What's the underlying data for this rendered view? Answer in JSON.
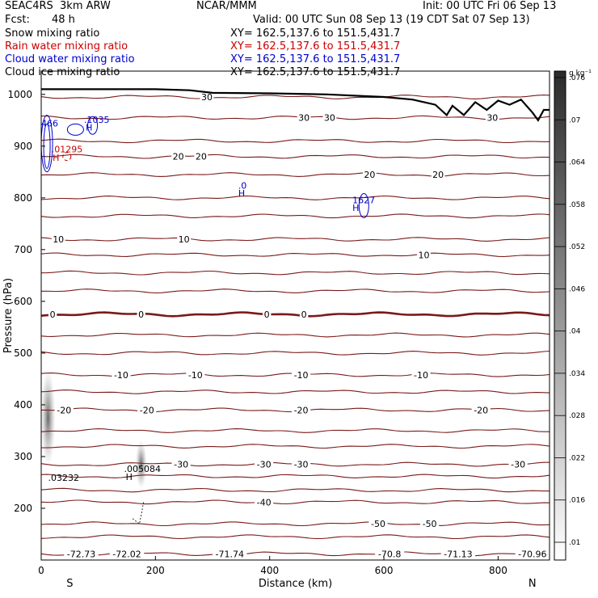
{
  "header": {
    "model": "SEAC4RS  3km ARW",
    "org": "NCAR/MMM",
    "init": "Init: 00 UTC Fri 06 Sep 13",
    "fcst_label": "Fcst:",
    "fcst_value": "48 h",
    "valid": "Valid: 00 UTC Sun 08 Sep 13 (19 CDT Sat 07 Sep 13)"
  },
  "legend": [
    {
      "label": "Snow mixing ratio",
      "xy": "XY= 162.5,137.6 to 151.5,431.7",
      "color": "#000000"
    },
    {
      "label": "Rain water mixing ratio",
      "xy": "XY= 162.5,137.6 to 151.5,431.7",
      "color": "#cc0000"
    },
    {
      "label": "Cloud water mixing ratio",
      "xy": "XY= 162.5,137.6 to 151.5,431.7",
      "color": "#0000cc"
    },
    {
      "label": "Cloud ice mixing ratio",
      "xy": "XY= 162.5,137.6 to 151.5,431.7",
      "color": "#000000"
    }
  ],
  "chart_data": {
    "type": "cross-section",
    "xlabel": "Distance (km)",
    "ylabel": "Pressure (hPa)",
    "xlim": [
      0,
      890
    ],
    "ylim": [
      1045,
      100
    ],
    "x_ticks": [
      0,
      200,
      400,
      600,
      800
    ],
    "y_ticks": [
      200,
      300,
      400,
      500,
      600,
      700,
      800,
      900,
      1000
    ],
    "end_labels": {
      "left": "S",
      "right": "N"
    },
    "colorbar": {
      "unit": "g kg⁻¹",
      "ticks": [
        ".01",
        ".016",
        ".022",
        ".028",
        ".034",
        ".04",
        ".046",
        ".052",
        ".058",
        ".064",
        ".07",
        ".076"
      ]
    },
    "temperature_isotherms": [
      {
        "p": 112,
        "labels": [
          {
            "x": 70,
            "t": "-72.73"
          },
          {
            "x": 150,
            "t": "-72.02"
          },
          {
            "x": 330,
            "t": "-71.74"
          },
          {
            "x": 610,
            "t": "-70.8"
          },
          {
            "x": 730,
            "t": "-71.13"
          },
          {
            "x": 860,
            "t": "-70.96"
          }
        ]
      },
      {
        "p": 145,
        "labels": []
      },
      {
        "p": 170,
        "labels": [
          {
            "x": 590,
            "t": "-50"
          },
          {
            "x": 680,
            "t": "-50"
          }
        ]
      },
      {
        "p": 212,
        "labels": [
          {
            "x": 390,
            "t": "-40"
          }
        ]
      },
      {
        "p": 235,
        "labels": []
      },
      {
        "p": 262,
        "labels": []
      },
      {
        "p": 285,
        "labels": [
          {
            "x": 245,
            "t": "-30"
          },
          {
            "x": 390,
            "t": "-30"
          },
          {
            "x": 455,
            "t": "-30"
          },
          {
            "x": 835,
            "t": "-30"
          }
        ]
      },
      {
        "p": 320,
        "labels": []
      },
      {
        "p": 350,
        "labels": []
      },
      {
        "p": 390,
        "labels": [
          {
            "x": 40,
            "t": "-20"
          },
          {
            "x": 185,
            "t": "-20"
          },
          {
            "x": 455,
            "t": "-20"
          },
          {
            "x": 770,
            "t": "-20"
          }
        ]
      },
      {
        "p": 425,
        "labels": []
      },
      {
        "p": 458,
        "labels": [
          {
            "x": 140,
            "t": "-10"
          },
          {
            "x": 270,
            "t": "-10"
          },
          {
            "x": 455,
            "t": "-10"
          },
          {
            "x": 665,
            "t": "-10"
          }
        ]
      },
      {
        "p": 500,
        "labels": []
      },
      {
        "p": 535,
        "labels": []
      },
      {
        "p": 575,
        "labels": [
          {
            "x": 20,
            "t": "0"
          },
          {
            "x": 175,
            "t": "0"
          },
          {
            "x": 395,
            "t": "0"
          },
          {
            "x": 460,
            "t": "0"
          }
        ],
        "bold": true
      },
      {
        "p": 620,
        "labels": []
      },
      {
        "p": 655,
        "labels": []
      },
      {
        "p": 690,
        "labels": [
          {
            "x": 670,
            "t": "10"
          }
        ]
      },
      {
        "p": 720,
        "labels": [
          {
            "x": 30,
            "t": "10"
          },
          {
            "x": 250,
            "t": "10"
          }
        ]
      },
      {
        "p": 765,
        "labels": []
      },
      {
        "p": 800,
        "labels": []
      },
      {
        "p": 845,
        "labels": [
          {
            "x": 695,
            "t": "20"
          },
          {
            "x": 575,
            "t": "20"
          }
        ]
      },
      {
        "p": 880,
        "labels": [
          {
            "x": 240,
            "t": "20"
          },
          {
            "x": 280,
            "t": "20"
          }
        ]
      },
      {
        "p": 910,
        "labels": []
      },
      {
        "p": 955,
        "labels": [
          {
            "x": 505,
            "t": "30"
          },
          {
            "x": 790,
            "t": "30"
          },
          {
            "x": 460,
            "t": "30"
          }
        ]
      },
      {
        "p": 995,
        "labels": [
          {
            "x": 290,
            "t": "30"
          }
        ]
      }
    ],
    "terrain": {
      "x": [
        0,
        100,
        200,
        260,
        300,
        400,
        500,
        600,
        650,
        690,
        700,
        710,
        720,
        740,
        760,
        780,
        800,
        820,
        840,
        860,
        870,
        880,
        890
      ],
      "p": [
        1010,
        1010,
        1010,
        1008,
        1003,
        1002,
        1000,
        995,
        990,
        980,
        970,
        960,
        978,
        960,
        985,
        970,
        988,
        980,
        990,
        965,
        950,
        970,
        970
      ]
    },
    "annotations": [
      {
        "x": 12,
        "p": 253,
        "t": ".03232",
        "color": "#000000"
      },
      {
        "x": 148,
        "p": 255,
        "t": "H",
        "color": "#000000"
      },
      {
        "x": 145,
        "p": 270,
        "t": ".005084",
        "color": "#000000"
      },
      {
        "x": 20,
        "p": 872,
        "t": "H",
        "color": "#cc0000"
      },
      {
        "x": 18,
        "p": 888,
        "t": ".01295",
        "color": "#cc0000"
      },
      {
        "x": 0,
        "p": 938,
        "t": "466",
        "color": "#0000cc"
      },
      {
        "x": 78,
        "p": 930,
        "t": "H",
        "color": "#0000cc"
      },
      {
        "x": 75,
        "p": 945,
        "t": ".1035",
        "color": "#0000cc"
      },
      {
        "x": 345,
        "p": 803,
        "t": "H",
        "color": "#0000cc"
      },
      {
        "x": 345,
        "p": 818,
        "t": ".0",
        "color": "#0000cc"
      },
      {
        "x": 545,
        "p": 775,
        "t": "H",
        "color": "#0000cc"
      },
      {
        "x": 545,
        "p": 790,
        "t": "1627",
        "color": "#0000cc"
      }
    ]
  }
}
